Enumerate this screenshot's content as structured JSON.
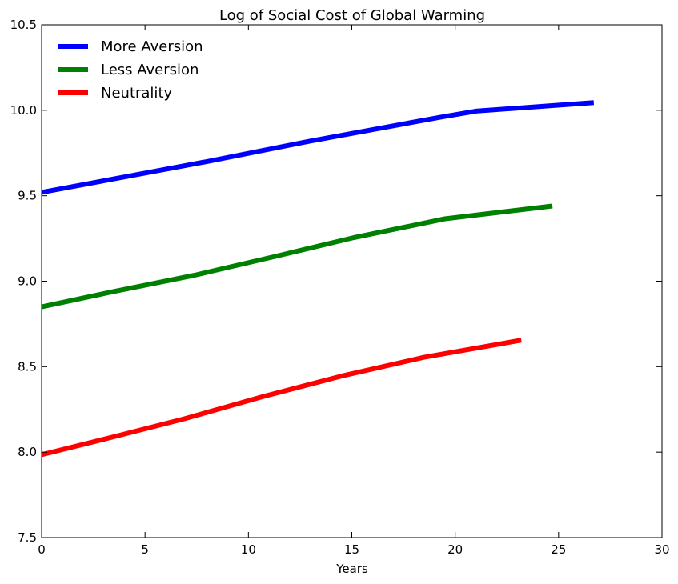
{
  "chart_data": {
    "type": "line",
    "title": "Log of Social Cost of Global Warming",
    "xlabel": "Years",
    "ylabel": "",
    "xlim": [
      0,
      30
    ],
    "ylim": [
      7.5,
      10.5
    ],
    "xticks": [
      0,
      5,
      10,
      15,
      20,
      25,
      30
    ],
    "yticks": [
      7.5,
      8.0,
      8.5,
      9.0,
      9.5,
      10.0,
      10.5
    ],
    "xtick_labels": [
      "0",
      "5",
      "10",
      "15",
      "20",
      "25",
      "30"
    ],
    "ytick_labels": [
      "7.5",
      "8.0",
      "8.5",
      "9.0",
      "9.5",
      "10.0",
      "10.5"
    ],
    "grid": false,
    "legend_position": "top-left",
    "series": [
      {
        "name": "More Aversion",
        "color": "#0000ff",
        "x": [
          0,
          4,
          8,
          13,
          19.3,
          21,
          26.7
        ],
        "y": [
          9.52,
          9.61,
          9.7,
          9.82,
          9.96,
          9.995,
          10.045
        ]
      },
      {
        "name": "Less Aversion",
        "color": "#008000",
        "x": [
          0,
          3.5,
          7.4,
          11.3,
          15.1,
          19.5,
          24.7
        ],
        "y": [
          8.85,
          8.94,
          9.035,
          9.145,
          9.255,
          9.365,
          9.44
        ]
      },
      {
        "name": "Neutrality",
        "color": "#ff0000",
        "x": [
          0,
          3.5,
          6.9,
          10.7,
          14.5,
          18.5,
          23.2
        ],
        "y": [
          7.985,
          8.09,
          8.195,
          8.325,
          8.445,
          8.555,
          8.655
        ]
      }
    ]
  }
}
